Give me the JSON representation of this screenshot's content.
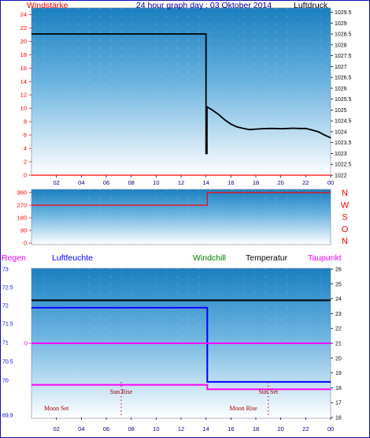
{
  "chart_data": [
    {
      "type": "line",
      "title": "24 hour graph day : 03 Oktober 2014",
      "left_label": "Windstärke",
      "right_label": "Luftdruck",
      "x_ticks": [
        "02",
        "04",
        "06",
        "08",
        "10",
        "12",
        "14",
        "16",
        "18",
        "20",
        "22",
        "00"
      ],
      "left_ticks": [
        "0",
        "2",
        "4",
        "6",
        "8",
        "10",
        "12",
        "14",
        "16",
        "18",
        "20",
        "22",
        "24"
      ],
      "right_ticks": [
        "1022",
        "1022.5",
        "1023",
        "1023.5",
        "1024",
        "1024.5",
        "1025",
        "1025.5",
        "1026",
        "1026.5",
        "1027",
        "1027.5",
        "1028",
        "1028.5",
        "1029",
        "1029.5"
      ],
      "ylim_left": [
        0,
        25
      ],
      "ylim_right": [
        1022,
        1029.7
      ],
      "series": [
        {
          "name": "Luftdruck",
          "axis": "right",
          "color": "#000000",
          "x": [
            0,
            14.0,
            14.0,
            14.08,
            14.08,
            14.5,
            15.0,
            15.5,
            16.0,
            16.5,
            17.0,
            17.5,
            18.0,
            18.5,
            19.0,
            19.5,
            20.0,
            20.5,
            21.0,
            21.5,
            22.0,
            22.5,
            23.0,
            23.5,
            24.0
          ],
          "y": [
            1028.5,
            1028.5,
            1023.0,
            1023.0,
            1025.15,
            1025.0,
            1024.8,
            1024.55,
            1024.35,
            1024.22,
            1024.15,
            1024.1,
            1024.12,
            1024.14,
            1024.15,
            1024.15,
            1024.14,
            1024.15,
            1024.16,
            1024.15,
            1024.15,
            1024.08,
            1024.0,
            1023.85,
            1023.72
          ]
        },
        {
          "name": "Windstärke",
          "axis": "left",
          "color": "#ff0000",
          "x": [
            0,
            24
          ],
          "y": [
            0,
            0
          ]
        }
      ]
    },
    {
      "type": "line",
      "left_ticks": [
        "0",
        "90",
        "180",
        "270",
        "360"
      ],
      "right_labels": [
        "N",
        "W",
        "S",
        "O",
        "N"
      ],
      "ylim": [
        0,
        360
      ],
      "series": [
        {
          "name": "Windrichtung",
          "color": "#ff0000",
          "x": [
            0,
            14.1,
            14.1,
            24
          ],
          "y": [
            270,
            270,
            360,
            360
          ]
        }
      ]
    },
    {
      "type": "line",
      "header_labels": {
        "regen": "Regen",
        "luftfeuchte": "Luftfeuchte",
        "windchill": "Windchill",
        "temperatur": "Temperatur",
        "taupunkt": "Taupunkt"
      },
      "left_ticks": [
        "69.9",
        "70",
        "70.5",
        "71",
        "71.5",
        "72",
        "72.5",
        "73"
      ],
      "regen_ticks": [
        "0"
      ],
      "right_ticks": [
        "16",
        "17",
        "18",
        "19",
        "20",
        "21",
        "22",
        "23",
        "24",
        "25",
        "26"
      ],
      "x_ticks": [
        "02",
        "04",
        "06",
        "08",
        "10",
        "12",
        "14",
        "16",
        "18",
        "20",
        "22",
        "00"
      ],
      "ylim_right": [
        16,
        26
      ],
      "series": [
        {
          "name": "Temperatur",
          "color": "#000000",
          "x": [
            0,
            24
          ],
          "y": [
            23.9,
            23.9
          ]
        },
        {
          "name": "Luftfeuchte",
          "color": "#0000ff",
          "x": [
            0,
            14.1,
            14.1,
            24
          ],
          "y": [
            23.4,
            23.4,
            18.4,
            18.4
          ]
        },
        {
          "name": "Regen",
          "color": "#ff00ff",
          "x": [
            0,
            24
          ],
          "y": [
            21.0,
            21.0
          ]
        },
        {
          "name": "Taupunkt",
          "color": "#ff00ff",
          "x": [
            0,
            14.1,
            14.1,
            24
          ],
          "y": [
            18.2,
            18.2,
            17.9,
            17.9
          ]
        }
      ],
      "annotations": [
        {
          "text": "Sun Rise",
          "x": 7.2,
          "row": "upper"
        },
        {
          "text": "Sun Set",
          "x": 19.0,
          "row": "upper"
        },
        {
          "text": "Moon Set",
          "x": 2.0,
          "row": "lower"
        },
        {
          "text": "Moon Rise",
          "x": 17.0,
          "row": "lower"
        }
      ],
      "vlines": [
        7.2,
        19.0
      ]
    }
  ]
}
